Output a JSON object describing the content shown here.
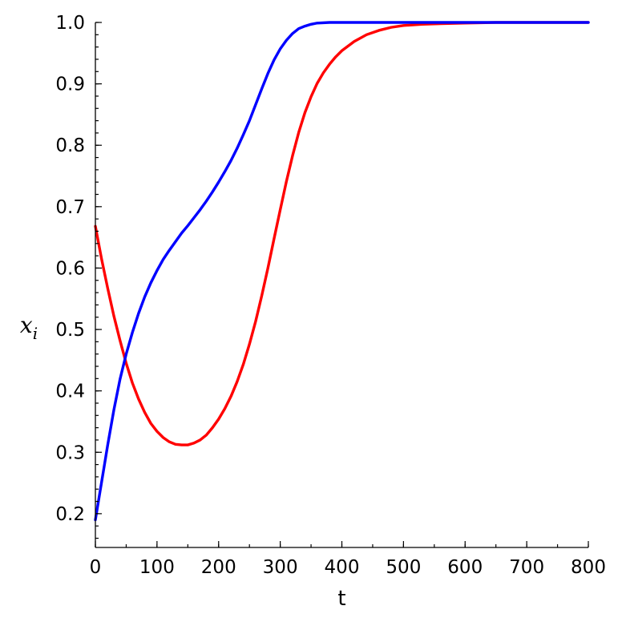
{
  "chart_data": {
    "type": "line",
    "xlabel": "t",
    "ylabel": {
      "base": "x",
      "subscript": "i"
    },
    "xlim": [
      0,
      800
    ],
    "ylim": [
      0.145,
      1.0
    ],
    "x_ticks": [
      0,
      100,
      200,
      300,
      400,
      500,
      600,
      700,
      800
    ],
    "x_tick_labels": [
      "0",
      "100",
      "200",
      "300",
      "400",
      "500",
      "600",
      "700",
      "800"
    ],
    "x_minor_step": 50,
    "y_ticks": [
      0.2,
      0.3,
      0.4,
      0.5,
      0.6,
      0.7,
      0.8,
      0.9,
      1.0
    ],
    "y_tick_labels": [
      "0.2",
      "0.3",
      "0.4",
      "0.5",
      "0.6",
      "0.7",
      "0.8",
      "0.9",
      "1.0"
    ],
    "y_minor_step": 0.02,
    "grid": false,
    "series": [
      {
        "color": "#ff0000",
        "points": [
          [
            0,
            0.668
          ],
          [
            10,
            0.615
          ],
          [
            20,
            0.567
          ],
          [
            30,
            0.522
          ],
          [
            40,
            0.482
          ],
          [
            50,
            0.445
          ],
          [
            60,
            0.413
          ],
          [
            70,
            0.387
          ],
          [
            80,
            0.365
          ],
          [
            90,
            0.347
          ],
          [
            100,
            0.334
          ],
          [
            110,
            0.324
          ],
          [
            120,
            0.317
          ],
          [
            130,
            0.313
          ],
          [
            140,
            0.312
          ],
          [
            150,
            0.312
          ],
          [
            160,
            0.315
          ],
          [
            170,
            0.32
          ],
          [
            180,
            0.328
          ],
          [
            190,
            0.34
          ],
          [
            200,
            0.354
          ],
          [
            210,
            0.371
          ],
          [
            220,
            0.391
          ],
          [
            230,
            0.415
          ],
          [
            240,
            0.443
          ],
          [
            250,
            0.476
          ],
          [
            260,
            0.513
          ],
          [
            270,
            0.555
          ],
          [
            280,
            0.6
          ],
          [
            290,
            0.648
          ],
          [
            300,
            0.695
          ],
          [
            310,
            0.741
          ],
          [
            320,
            0.783
          ],
          [
            330,
            0.821
          ],
          [
            340,
            0.853
          ],
          [
            350,
            0.879
          ],
          [
            360,
            0.901
          ],
          [
            370,
            0.918
          ],
          [
            380,
            0.932
          ],
          [
            390,
            0.944
          ],
          [
            400,
            0.954
          ],
          [
            420,
            0.969
          ],
          [
            440,
            0.98
          ],
          [
            460,
            0.987
          ],
          [
            480,
            0.992
          ],
          [
            500,
            0.995
          ],
          [
            530,
            0.997
          ],
          [
            560,
            0.998
          ],
          [
            600,
            0.999
          ],
          [
            650,
            1.0
          ],
          [
            700,
            1.0
          ],
          [
            800,
            1.0
          ]
        ]
      },
      {
        "color": "#0000ff",
        "points": [
          [
            0,
            0.19
          ],
          [
            10,
            0.251
          ],
          [
            20,
            0.312
          ],
          [
            30,
            0.369
          ],
          [
            40,
            0.419
          ],
          [
            50,
            0.46
          ],
          [
            60,
            0.495
          ],
          [
            70,
            0.526
          ],
          [
            80,
            0.553
          ],
          [
            90,
            0.576
          ],
          [
            100,
            0.596
          ],
          [
            110,
            0.614
          ],
          [
            120,
            0.629
          ],
          [
            130,
            0.643
          ],
          [
            140,
            0.657
          ],
          [
            150,
            0.669
          ],
          [
            160,
            0.682
          ],
          [
            170,
            0.695
          ],
          [
            180,
            0.709
          ],
          [
            190,
            0.724
          ],
          [
            200,
            0.74
          ],
          [
            210,
            0.757
          ],
          [
            220,
            0.775
          ],
          [
            230,
            0.795
          ],
          [
            240,
            0.817
          ],
          [
            250,
            0.84
          ],
          [
            260,
            0.866
          ],
          [
            270,
            0.892
          ],
          [
            280,
            0.917
          ],
          [
            290,
            0.939
          ],
          [
            300,
            0.957
          ],
          [
            310,
            0.971
          ],
          [
            320,
            0.982
          ],
          [
            330,
            0.99
          ],
          [
            340,
            0.994
          ],
          [
            350,
            0.997
          ],
          [
            360,
            0.999
          ],
          [
            380,
            1.0
          ],
          [
            400,
            1.0
          ],
          [
            500,
            1.0
          ],
          [
            600,
            1.0
          ],
          [
            700,
            1.0
          ],
          [
            800,
            1.0
          ]
        ]
      }
    ]
  }
}
